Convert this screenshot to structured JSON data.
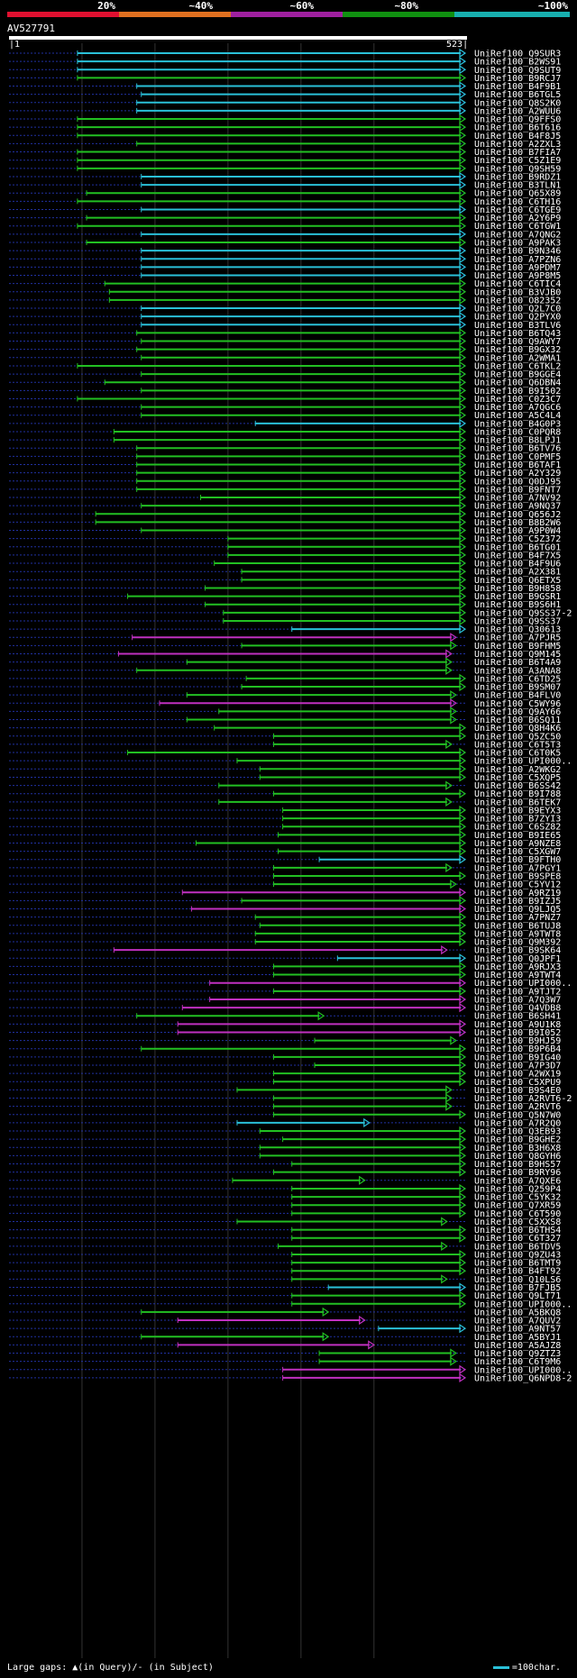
{
  "query": {
    "id": "AV527791",
    "start": "1",
    "end": "523"
  },
  "scale": {
    "labels": [
      "20%",
      "~40%",
      "~60%",
      "~80%",
      "~100%"
    ],
    "colors": [
      "#e01030",
      "#e07020",
      "#a020a0",
      "#109010",
      "#18b0b0"
    ]
  },
  "legend": {
    "large_gaps_label": "Large gaps:",
    "query_gap": "(in Query)",
    "subject_gap": "(in Subject)",
    "scale_note": "=100char."
  },
  "colors": {
    "cyan": "#2ac0d8",
    "green": "#22c022",
    "magenta": "#c030c0",
    "dots": "#2030a0"
  },
  "hits": [
    {
      "label": "UniRef100_Q9SUR3",
      "color": "cyan",
      "start": 0.15,
      "end": 1.0
    },
    {
      "label": "UniRef100_B2WS91",
      "color": "cyan",
      "start": 0.15,
      "end": 1.0
    },
    {
      "label": "UniRef100_Q9SUT9",
      "color": "cyan",
      "start": 0.15,
      "end": 1.0
    },
    {
      "label": "UniRef100_B9RCJ7",
      "color": "green",
      "start": 0.15,
      "end": 1.0
    },
    {
      "label": "UniRef100_B4F9B1",
      "color": "cyan",
      "start": 0.28,
      "end": 1.0
    },
    {
      "label": "UniRef100_B6TGL5",
      "color": "cyan",
      "start": 0.29,
      "end": 1.0
    },
    {
      "label": "UniRef100_Q8S2K0",
      "color": "cyan",
      "start": 0.28,
      "end": 1.0
    },
    {
      "label": "UniRef100_A2WUU6",
      "color": "cyan",
      "start": 0.28,
      "end": 1.0
    },
    {
      "label": "UniRef100_Q9FFS0",
      "color": "green",
      "start": 0.15,
      "end": 1.0
    },
    {
      "label": "UniRef100_B6T616",
      "color": "green",
      "start": 0.15,
      "end": 1.0
    },
    {
      "label": "UniRef100_B4F8J5",
      "color": "green",
      "start": 0.15,
      "end": 1.0
    },
    {
      "label": "UniRef100_A2ZXL3",
      "color": "green",
      "start": 0.28,
      "end": 1.0
    },
    {
      "label": "UniRef100_B7FIA7",
      "color": "green",
      "start": 0.15,
      "end": 1.0
    },
    {
      "label": "UniRef100_C5Z1E9",
      "color": "green",
      "start": 0.15,
      "end": 1.0
    },
    {
      "label": "UniRef100_Q9SH59",
      "color": "green",
      "start": 0.15,
      "end": 1.0
    },
    {
      "label": "UniRef100_B9RDZ1",
      "color": "cyan",
      "start": 0.29,
      "end": 1.0
    },
    {
      "label": "UniRef100_B3TLN1",
      "color": "cyan",
      "start": 0.29,
      "end": 1.0
    },
    {
      "label": "UniRef100_Q65X89",
      "color": "green",
      "start": 0.17,
      "end": 1.0
    },
    {
      "label": "UniRef100_C6TH16",
      "color": "green",
      "start": 0.15,
      "end": 1.0
    },
    {
      "label": "UniRef100_C6TGE9",
      "color": "cyan",
      "start": 0.29,
      "end": 1.0
    },
    {
      "label": "UniRef100_A2Y6P9",
      "color": "green",
      "start": 0.17,
      "end": 1.0
    },
    {
      "label": "UniRef100_C6TGW1",
      "color": "green",
      "start": 0.15,
      "end": 1.0
    },
    {
      "label": "UniRef100_A7QNG2",
      "color": "cyan",
      "start": 0.29,
      "end": 1.0
    },
    {
      "label": "UniRef100_A9PAK3",
      "color": "green",
      "start": 0.17,
      "end": 1.0
    },
    {
      "label": "UniRef100_B9N346",
      "color": "cyan",
      "start": 0.29,
      "end": 1.0
    },
    {
      "label": "UniRef100_A7PZN6",
      "color": "cyan",
      "start": 0.29,
      "end": 1.0
    },
    {
      "label": "UniRef100_A9PDM7",
      "color": "cyan",
      "start": 0.29,
      "end": 1.0
    },
    {
      "label": "UniRef100_A9P8M5",
      "color": "cyan",
      "start": 0.29,
      "end": 1.0
    },
    {
      "label": "UniRef100_C6TIC4",
      "color": "green",
      "start": 0.21,
      "end": 1.0
    },
    {
      "label": "UniRef100_B3VJB0",
      "color": "green",
      "start": 0.22,
      "end": 1.0
    },
    {
      "label": "UniRef100_O82352",
      "color": "green",
      "start": 0.22,
      "end": 1.0
    },
    {
      "label": "UniRef100_Q2L7C0",
      "color": "cyan",
      "start": 0.29,
      "end": 1.0
    },
    {
      "label": "UniRef100_Q2PYX0",
      "color": "cyan",
      "start": 0.29,
      "end": 1.0
    },
    {
      "label": "UniRef100_B3TLV6",
      "color": "cyan",
      "start": 0.29,
      "end": 1.0
    },
    {
      "label": "UniRef100_B6TQ43",
      "color": "green",
      "start": 0.28,
      "end": 1.0
    },
    {
      "label": "UniRef100_Q9AWY7",
      "color": "green",
      "start": 0.29,
      "end": 1.0
    },
    {
      "label": "UniRef100_B9GX32",
      "color": "green",
      "start": 0.28,
      "end": 1.0
    },
    {
      "label": "UniRef100_A2WMA1",
      "color": "green",
      "start": 0.29,
      "end": 1.0
    },
    {
      "label": "UniRef100_C6TKL2",
      "color": "green",
      "start": 0.15,
      "end": 1.0
    },
    {
      "label": "UniRef100_B9GGE4",
      "color": "green",
      "start": 0.29,
      "end": 1.0
    },
    {
      "label": "UniRef100_Q6DBN4",
      "color": "green",
      "start": 0.21,
      "end": 1.0
    },
    {
      "label": "UniRef100_B9I502",
      "color": "green",
      "start": 0.29,
      "end": 1.0
    },
    {
      "label": "UniRef100_C0Z3C7",
      "color": "green",
      "start": 0.15,
      "end": 1.0
    },
    {
      "label": "UniRef100_A7QGC6",
      "color": "green",
      "start": 0.29,
      "end": 1.0
    },
    {
      "label": "UniRef100_A5C4L4",
      "color": "green",
      "start": 0.29,
      "end": 1.0
    },
    {
      "label": "UniRef100_B4G0P3",
      "color": "cyan",
      "start": 0.54,
      "end": 1.0
    },
    {
      "label": "UniRef100_C0PQR8",
      "color": "green",
      "start": 0.23,
      "end": 1.0
    },
    {
      "label": "UniRef100_B8LPJ1",
      "color": "green",
      "start": 0.23,
      "end": 1.0
    },
    {
      "label": "UniRef100_B6TV76",
      "color": "green",
      "start": 0.28,
      "end": 1.0
    },
    {
      "label": "UniRef100_C0PMF5",
      "color": "green",
      "start": 0.28,
      "end": 1.0
    },
    {
      "label": "UniRef100_B6TAF1",
      "color": "green",
      "start": 0.28,
      "end": 1.0
    },
    {
      "label": "UniRef100_A2Y329",
      "color": "green",
      "start": 0.28,
      "end": 1.0
    },
    {
      "label": "UniRef100_Q0DJ95",
      "color": "green",
      "start": 0.28,
      "end": 1.0
    },
    {
      "label": "UniRef100_B9FNT7",
      "color": "green",
      "start": 0.28,
      "end": 1.0
    },
    {
      "label": "UniRef100_A7NV92",
      "color": "green",
      "start": 0.42,
      "end": 1.0
    },
    {
      "label": "UniRef100_A9NQ37",
      "color": "green",
      "start": 0.29,
      "end": 1.0
    },
    {
      "label": "UniRef100_Q656J2",
      "color": "green",
      "start": 0.19,
      "end": 1.0
    },
    {
      "label": "UniRef100_B8B2W6",
      "color": "green",
      "start": 0.19,
      "end": 1.0
    },
    {
      "label": "UniRef100_A9P0W4",
      "color": "green",
      "start": 0.29,
      "end": 1.0
    },
    {
      "label": "UniRef100_C5Z372",
      "color": "green",
      "start": 0.48,
      "end": 1.0
    },
    {
      "label": "UniRef100_B6TG01",
      "color": "green",
      "start": 0.48,
      "end": 1.0
    },
    {
      "label": "UniRef100_B4F7X5",
      "color": "green",
      "start": 0.48,
      "end": 1.0
    },
    {
      "label": "UniRef100_B4F9U6",
      "color": "green",
      "start": 0.45,
      "end": 1.0
    },
    {
      "label": "UniRef100_A2X381",
      "color": "green",
      "start": 0.51,
      "end": 1.0
    },
    {
      "label": "UniRef100_Q6ETX5",
      "color": "green",
      "start": 0.51,
      "end": 1.0
    },
    {
      "label": "UniRef100_B9H858",
      "color": "green",
      "start": 0.43,
      "end": 1.0
    },
    {
      "label": "UniRef100_B9GSR1",
      "color": "green",
      "start": 0.26,
      "end": 1.0
    },
    {
      "label": "UniRef100_B9S6H1",
      "color": "green",
      "start": 0.43,
      "end": 1.0
    },
    {
      "label": "UniRef100_Q9SS37-2",
      "color": "green",
      "start": 0.47,
      "end": 1.0
    },
    {
      "label": "UniRef100_Q9SS37",
      "color": "green",
      "start": 0.47,
      "end": 1.0
    },
    {
      "label": "UniRef100_Q30613",
      "color": "cyan",
      "start": 0.62,
      "end": 1.0
    },
    {
      "label": "UniRef100_A7PJR5",
      "color": "magenta",
      "start": 0.27,
      "end": 0.98
    },
    {
      "label": "UniRef100_B9FHM5",
      "color": "green",
      "start": 0.51,
      "end": 0.98
    },
    {
      "label": "UniRef100_Q9M145",
      "color": "magenta",
      "start": 0.24,
      "end": 0.97
    },
    {
      "label": "UniRef100_B6T4A9",
      "color": "green",
      "start": 0.39,
      "end": 0.97
    },
    {
      "label": "UniRef100_A3ANA8",
      "color": "green",
      "start": 0.28,
      "end": 0.97
    },
    {
      "label": "UniRef100_C6TD25",
      "color": "green",
      "start": 0.52,
      "end": 1.0
    },
    {
      "label": "UniRef100_B9SM07",
      "color": "green",
      "start": 0.51,
      "end": 1.0
    },
    {
      "label": "UniRef100_B4FLV0",
      "color": "green",
      "start": 0.39,
      "end": 0.98
    },
    {
      "label": "UniRef100_C5WY96",
      "color": "magenta",
      "start": 0.33,
      "end": 0.98
    },
    {
      "label": "UniRef100_Q9AY66",
      "color": "green",
      "start": 0.46,
      "end": 0.98
    },
    {
      "label": "UniRef100_B6SQ11",
      "color": "green",
      "start": 0.39,
      "end": 0.98
    },
    {
      "label": "UniRef100_Q8H4K6",
      "color": "green",
      "start": 0.45,
      "end": 1.0
    },
    {
      "label": "UniRef100_Q5ZC50",
      "color": "green",
      "start": 0.58,
      "end": 1.0
    },
    {
      "label": "UniRef100_C6T5T3",
      "color": "green",
      "start": 0.58,
      "end": 0.97
    },
    {
      "label": "UniRef100_C6T0K5",
      "color": "green",
      "start": 0.26,
      "end": 1.0
    },
    {
      "label": "UniRef100_UPI000..",
      "color": "green",
      "start": 0.5,
      "end": 1.0
    },
    {
      "label": "UniRef100_A2WKG2",
      "color": "green",
      "start": 0.55,
      "end": 1.0
    },
    {
      "label": "UniRef100_C5XQP5",
      "color": "green",
      "start": 0.55,
      "end": 1.0
    },
    {
      "label": "UniRef100_B6SS42",
      "color": "green",
      "start": 0.46,
      "end": 0.97
    },
    {
      "label": "UniRef100_B9I788",
      "color": "green",
      "start": 0.58,
      "end": 1.0
    },
    {
      "label": "UniRef100_B6TEK7",
      "color": "green",
      "start": 0.46,
      "end": 0.97
    },
    {
      "label": "UniRef100_B9EYX3",
      "color": "green",
      "start": 0.6,
      "end": 1.0
    },
    {
      "label": "UniRef100_B7ZYI3",
      "color": "green",
      "start": 0.6,
      "end": 1.0
    },
    {
      "label": "UniRef100_C6SZ82",
      "color": "green",
      "start": 0.6,
      "end": 1.0
    },
    {
      "label": "UniRef100_B9IE65",
      "color": "green",
      "start": 0.59,
      "end": 1.0
    },
    {
      "label": "UniRef100_A9NZE8",
      "color": "green",
      "start": 0.41,
      "end": 1.0
    },
    {
      "label": "UniRef100_C5XGW7",
      "color": "green",
      "start": 0.59,
      "end": 1.0
    },
    {
      "label": "UniRef100_B9FTH0",
      "color": "cyan",
      "start": 0.68,
      "end": 1.0
    },
    {
      "label": "UniRef100_A7PGY1",
      "color": "green",
      "start": 0.58,
      "end": 0.97
    },
    {
      "label": "UniRef100_B9SPE8",
      "color": "green",
      "start": 0.58,
      "end": 1.0
    },
    {
      "label": "UniRef100_C5YV12",
      "color": "green",
      "start": 0.58,
      "end": 0.98
    },
    {
      "label": "UniRef100_A9RZ19",
      "color": "magenta",
      "start": 0.38,
      "end": 1.0
    },
    {
      "label": "UniRef100_B9IZJ5",
      "color": "green",
      "start": 0.51,
      "end": 1.0
    },
    {
      "label": "UniRef100_Q9LJQ5",
      "color": "magenta",
      "start": 0.4,
      "end": 1.0
    },
    {
      "label": "UniRef100_A7PNZ7",
      "color": "green",
      "start": 0.54,
      "end": 1.0
    },
    {
      "label": "UniRef100_B6TUJ8",
      "color": "green",
      "start": 0.55,
      "end": 1.0
    },
    {
      "label": "UniRef100_A9TWT8",
      "color": "green",
      "start": 0.54,
      "end": 1.0
    },
    {
      "label": "UniRef100_Q9M392",
      "color": "green",
      "start": 0.54,
      "end": 1.0
    },
    {
      "label": "UniRef100_B9SK64",
      "color": "magenta",
      "start": 0.23,
      "end": 0.96
    },
    {
      "label": "UniRef100_Q0JPF1",
      "color": "cyan",
      "start": 0.72,
      "end": 1.0
    },
    {
      "label": "UniRef100_A9RJX3",
      "color": "green",
      "start": 0.58,
      "end": 1.0
    },
    {
      "label": "UniRef100_A9TWT4",
      "color": "green",
      "start": 0.58,
      "end": 1.0
    },
    {
      "label": "UniRef100_UPI000..",
      "color": "magenta",
      "start": 0.44,
      "end": 1.0
    },
    {
      "label": "UniRef100_A9TJT2",
      "color": "green",
      "start": 0.58,
      "end": 1.0
    },
    {
      "label": "UniRef100_A7Q3W7",
      "color": "magenta",
      "start": 0.44,
      "end": 1.0
    },
    {
      "label": "UniRef100_Q4VDB8",
      "color": "magenta",
      "start": 0.38,
      "end": 1.0
    },
    {
      "label": "UniRef100_B6SH41",
      "color": "green",
      "start": 0.28,
      "end": 0.69
    },
    {
      "label": "UniRef100_A9U1K8",
      "color": "magenta",
      "start": 0.37,
      "end": 1.0
    },
    {
      "label": "UniRef100_B9I052",
      "color": "magenta",
      "start": 0.37,
      "end": 1.0
    },
    {
      "label": "UniRef100_B9HJ59",
      "color": "green",
      "start": 0.67,
      "end": 0.98
    },
    {
      "label": "UniRef100_B9P6B4",
      "color": "green",
      "start": 0.29,
      "end": 1.0
    },
    {
      "label": "UniRef100_B9IG40",
      "color": "green",
      "start": 0.58,
      "end": 1.0
    },
    {
      "label": "UniRef100_A7P3D7",
      "color": "green",
      "start": 0.67,
      "end": 1.0
    },
    {
      "label": "UniRef100_A2WX19",
      "color": "green",
      "start": 0.58,
      "end": 1.0
    },
    {
      "label": "UniRef100_C5XPU9",
      "color": "green",
      "start": 0.58,
      "end": 1.0
    },
    {
      "label": "UniRef100_B9S4E0",
      "color": "green",
      "start": 0.5,
      "end": 0.97
    },
    {
      "label": "UniRef100_A2RVT6-2",
      "color": "green",
      "start": 0.58,
      "end": 0.97
    },
    {
      "label": "UniRef100_A2RVT6",
      "color": "green",
      "start": 0.58,
      "end": 0.97
    },
    {
      "label": "UniRef100_Q5N7W0",
      "color": "green",
      "start": 0.58,
      "end": 1.0
    },
    {
      "label": "UniRef100_A7R2Q0",
      "color": "cyan",
      "start": 0.5,
      "end": 0.79
    },
    {
      "label": "UniRef100_Q3EB93",
      "color": "green",
      "start": 0.55,
      "end": 1.0
    },
    {
      "label": "UniRef100_B9GHE2",
      "color": "green",
      "start": 0.6,
      "end": 1.0
    },
    {
      "label": "UniRef100_B3H6X8",
      "color": "green",
      "start": 0.55,
      "end": 1.0
    },
    {
      "label": "UniRef100_Q8GYH6",
      "color": "green",
      "start": 0.55,
      "end": 1.0
    },
    {
      "label": "UniRef100_B9HS57",
      "color": "green",
      "start": 0.62,
      "end": 1.0
    },
    {
      "label": "UniRef100_B9RY96",
      "color": "green",
      "start": 0.58,
      "end": 1.0
    },
    {
      "label": "UniRef100_A7QXE6",
      "color": "green",
      "start": 0.49,
      "end": 0.78
    },
    {
      "label": "UniRef100_Q259P4",
      "color": "green",
      "start": 0.62,
      "end": 1.0
    },
    {
      "label": "UniRef100_C5YK32",
      "color": "green",
      "start": 0.62,
      "end": 1.0
    },
    {
      "label": "UniRef100_Q7XR59",
      "color": "green",
      "start": 0.62,
      "end": 1.0
    },
    {
      "label": "UniRef100_C6T590",
      "color": "green",
      "start": 0.62,
      "end": 1.0
    },
    {
      "label": "UniRef100_C5XXS8",
      "color": "green",
      "start": 0.5,
      "end": 0.96
    },
    {
      "label": "UniRef100_B6THS4",
      "color": "green",
      "start": 0.62,
      "end": 1.0
    },
    {
      "label": "UniRef100_C6T327",
      "color": "green",
      "start": 0.62,
      "end": 1.0
    },
    {
      "label": "UniRef100_B6TDV5",
      "color": "green",
      "start": 0.59,
      "end": 0.96
    },
    {
      "label": "UniRef100_Q9ZU43",
      "color": "green",
      "start": 0.62,
      "end": 1.0
    },
    {
      "label": "UniRef100_B6TMT9",
      "color": "green",
      "start": 0.62,
      "end": 1.0
    },
    {
      "label": "UniRef100_B4FT92",
      "color": "green",
      "start": 0.62,
      "end": 1.0
    },
    {
      "label": "UniRef100_Q10LS6",
      "color": "green",
      "start": 0.62,
      "end": 0.96
    },
    {
      "label": "UniRef100_B7FJB5",
      "color": "cyan",
      "start": 0.7,
      "end": 1.0
    },
    {
      "label": "UniRef100_Q9LT71",
      "color": "green",
      "start": 0.62,
      "end": 1.0
    },
    {
      "label": "UniRef100_UPI000..",
      "color": "green",
      "start": 0.62,
      "end": 1.0
    },
    {
      "label": "UniRef100_A5BKQ8",
      "color": "green",
      "start": 0.29,
      "end": 0.7
    },
    {
      "label": "UniRef100_A7QUV2",
      "color": "magenta",
      "start": 0.37,
      "end": 0.78
    },
    {
      "label": "UniRef100_A9NT57",
      "color": "cyan",
      "start": 0.81,
      "end": 1.0
    },
    {
      "label": "UniRef100_A5BYJ1",
      "color": "green",
      "start": 0.29,
      "end": 0.7
    },
    {
      "label": "UniRef100_A5AJZ8",
      "color": "magenta",
      "start": 0.37,
      "end": 0.8
    },
    {
      "label": "UniRef100_Q9ZTZ3",
      "color": "green",
      "start": 0.68,
      "end": 0.98
    },
    {
      "label": "UniRef100_C6T9M6",
      "color": "green",
      "start": 0.68,
      "end": 0.98
    },
    {
      "label": "UniRef100_UPI000..",
      "color": "magenta",
      "start": 0.6,
      "end": 1.0
    },
    {
      "label": "UniRef100_Q6NPD8-2",
      "color": "magenta",
      "start": 0.6,
      "end": 1.0
    }
  ]
}
